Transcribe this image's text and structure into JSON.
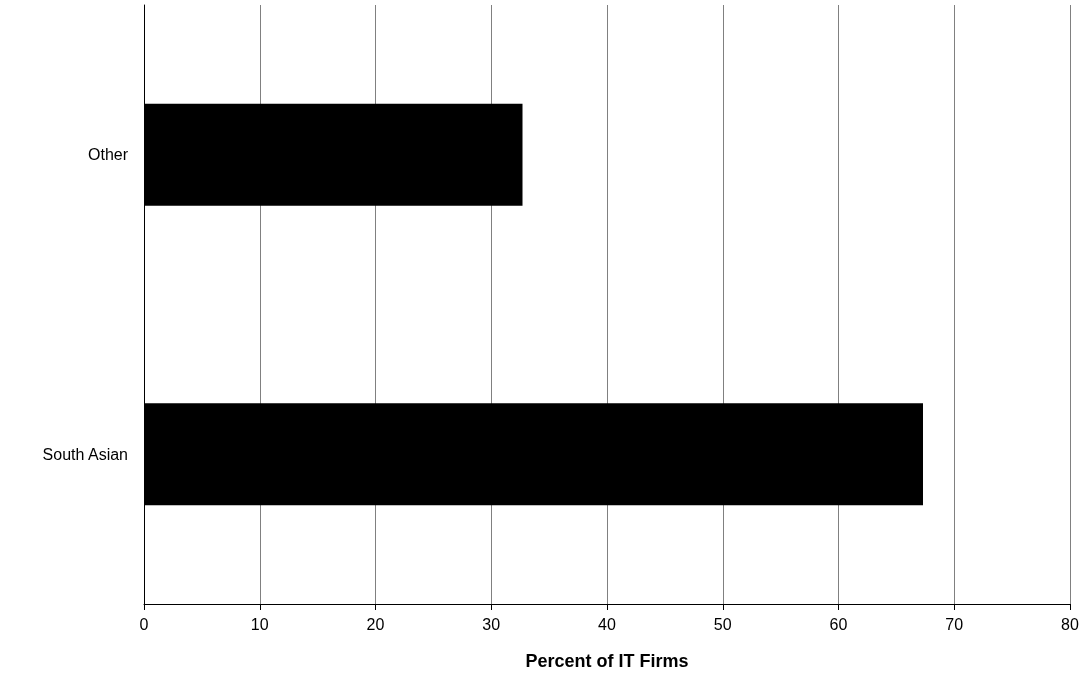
{
  "chart_data": {
    "type": "bar",
    "orientation": "horizontal",
    "xlabel": "Percent of IT Firms",
    "categories": [
      "Other",
      "South Asian"
    ],
    "values": [
      32.7,
      67.3
    ],
    "color": "#000000",
    "xlim": [
      0,
      80
    ],
    "xticks": [
      0,
      10,
      20,
      30,
      40,
      50,
      60,
      70,
      80
    ],
    "grid": "x"
  }
}
